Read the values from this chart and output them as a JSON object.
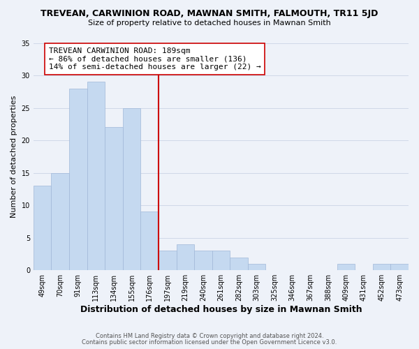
{
  "title": "TREVEAN, CARWINION ROAD, MAWNAN SMITH, FALMOUTH, TR11 5JD",
  "subtitle": "Size of property relative to detached houses in Mawnan Smith",
  "xlabel": "Distribution of detached houses by size in Mawnan Smith",
  "ylabel": "Number of detached properties",
  "bar_labels": [
    "49sqm",
    "70sqm",
    "91sqm",
    "113sqm",
    "134sqm",
    "155sqm",
    "176sqm",
    "197sqm",
    "219sqm",
    "240sqm",
    "261sqm",
    "282sqm",
    "303sqm",
    "325sqm",
    "346sqm",
    "367sqm",
    "388sqm",
    "409sqm",
    "431sqm",
    "452sqm",
    "473sqm"
  ],
  "bar_values": [
    13,
    15,
    28,
    29,
    22,
    25,
    9,
    3,
    4,
    3,
    3,
    2,
    1,
    0,
    0,
    0,
    0,
    1,
    0,
    1,
    1
  ],
  "bar_color": "#c5d9f0",
  "bar_edge_color": "#a0b8d8",
  "annotation_line1": "TREVEAN CARWINION ROAD: 189sqm",
  "annotation_line2": "← 86% of detached houses are smaller (136)",
  "annotation_line3": "14% of semi-detached houses are larger (22) →",
  "ylim": [
    0,
    35
  ],
  "yticks": [
    0,
    5,
    10,
    15,
    20,
    25,
    30,
    35
  ],
  "footer_line1": "Contains HM Land Registry data © Crown copyright and database right 2024.",
  "footer_line2": "Contains public sector information licensed under the Open Government Licence v3.0.",
  "bg_color": "#eef2f9",
  "annotation_box_bg": "#ffffff",
  "annotation_box_edge": "#cc0000",
  "ref_line_color": "#cc0000",
  "grid_color": "#d0d8e8",
  "title_fontsize": 9,
  "subtitle_fontsize": 8,
  "xlabel_fontsize": 9,
  "ylabel_fontsize": 8,
  "tick_fontsize": 7,
  "annotation_fontsize": 8,
  "footer_fontsize": 6
}
